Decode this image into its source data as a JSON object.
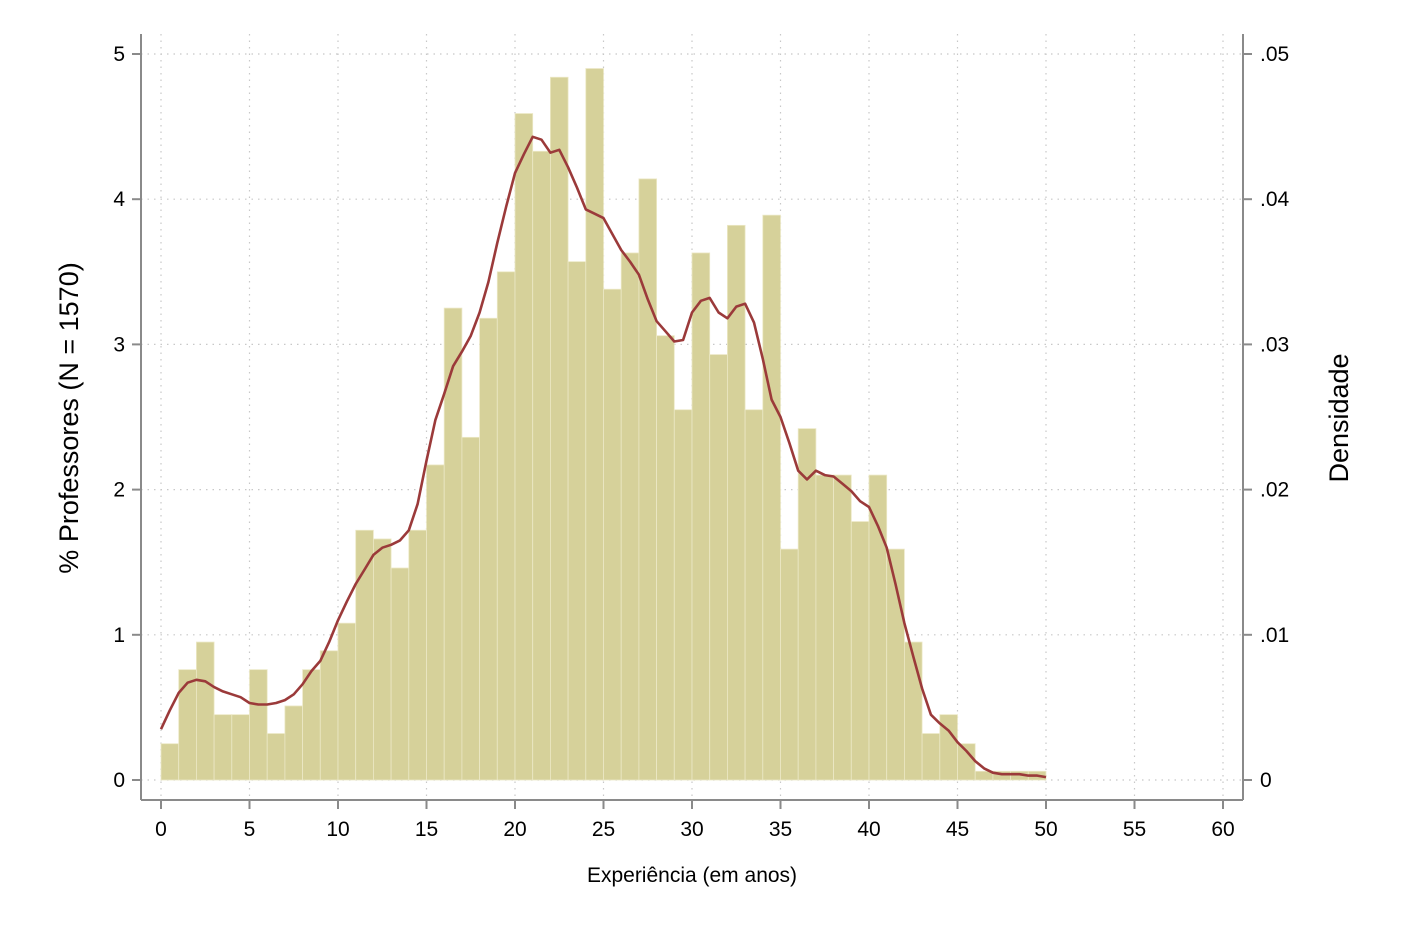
{
  "chart_data": {
    "type": "bar",
    "title": "",
    "xlabel": "Experiência (em anos)",
    "ylabel": "% Professores (N = 1570)",
    "y2label": "Densidade",
    "xlim": [
      0,
      60
    ],
    "ylim": [
      0,
      5
    ],
    "y2lim": [
      0,
      0.05
    ],
    "x_ticks": [
      "0",
      "5",
      "10",
      "15",
      "20",
      "25",
      "30",
      "35",
      "40",
      "45",
      "50",
      "55",
      "60"
    ],
    "y_ticks": [
      "0",
      "1",
      "2",
      "3",
      "4",
      "5"
    ],
    "y2_ticks": [
      "0",
      ".01",
      ".02",
      ".03",
      ".04",
      ".05"
    ],
    "grid": true,
    "colors": {
      "bars": "#d6d19a",
      "density": "#9b3a3a",
      "axis": "#8a8a8a",
      "grid": "#c8c8c8"
    },
    "series": [
      {
        "type": "histogram",
        "bin_width": 1,
        "x": [
          0,
          1,
          2,
          3,
          4,
          5,
          6,
          7,
          8,
          9,
          10,
          11,
          12,
          13,
          14,
          15,
          16,
          17,
          18,
          19,
          20,
          21,
          22,
          23,
          24,
          25,
          26,
          27,
          28,
          29,
          30,
          31,
          32,
          33,
          34,
          35,
          36,
          37,
          38,
          39,
          40,
          41,
          42,
          43,
          44,
          45,
          46,
          47,
          48,
          49
        ],
        "values": [
          0.25,
          0.76,
          0.95,
          0.45,
          0.45,
          0.76,
          0.32,
          0.51,
          0.76,
          0.89,
          1.08,
          1.72,
          1.66,
          1.46,
          1.72,
          2.17,
          3.25,
          2.36,
          3.18,
          3.5,
          4.59,
          4.33,
          4.84,
          3.57,
          4.9,
          3.38,
          3.63,
          4.14,
          3.06,
          2.55,
          3.63,
          2.93,
          3.82,
          2.55,
          3.89,
          1.59,
          2.42,
          2.1,
          2.1,
          1.78,
          2.1,
          1.59,
          0.95,
          0.32,
          0.45,
          0.25,
          0.06,
          0.06,
          0.06,
          0.06
        ]
      },
      {
        "type": "density",
        "x": [
          0,
          0.5,
          1,
          1.5,
          2,
          2.5,
          3,
          3.5,
          4,
          4.5,
          5,
          5.5,
          6,
          6.5,
          7,
          7.5,
          8,
          8.5,
          9,
          9.5,
          10,
          10.5,
          11,
          11.5,
          12,
          12.5,
          13,
          13.5,
          14,
          14.5,
          15,
          15.5,
          16,
          16.5,
          17,
          17.5,
          18,
          18.5,
          19,
          19.5,
          20,
          20.5,
          21,
          21.5,
          22,
          22.5,
          23,
          23.5,
          24,
          24.5,
          25,
          25.5,
          26,
          26.5,
          27,
          27.5,
          28,
          28.5,
          29,
          29.5,
          30,
          30.5,
          31,
          31.5,
          32,
          32.5,
          33,
          33.5,
          34,
          34.5,
          35,
          35.5,
          36,
          36.5,
          37,
          37.5,
          38,
          38.5,
          39,
          39.5,
          40,
          40.5,
          41,
          41.5,
          42,
          42.5,
          43,
          43.5,
          44,
          44.5,
          45,
          45.5,
          46,
          46.5,
          47,
          47.5,
          48,
          48.5,
          49,
          49.5,
          50
        ],
        "values": [
          0.0035,
          0.0048,
          0.006,
          0.0067,
          0.0069,
          0.0068,
          0.0064,
          0.0061,
          0.0059,
          0.0057,
          0.0053,
          0.0052,
          0.0052,
          0.0053,
          0.0055,
          0.0059,
          0.0066,
          0.0075,
          0.0082,
          0.0095,
          0.011,
          0.0123,
          0.0135,
          0.0145,
          0.0155,
          0.016,
          0.0162,
          0.0165,
          0.0172,
          0.019,
          0.022,
          0.0248,
          0.0266,
          0.0285,
          0.0295,
          0.0306,
          0.0322,
          0.0343,
          0.037,
          0.0395,
          0.0418,
          0.0431,
          0.0443,
          0.0441,
          0.0432,
          0.0434,
          0.0422,
          0.0408,
          0.0393,
          0.039,
          0.0387,
          0.0376,
          0.0365,
          0.0357,
          0.0348,
          0.0331,
          0.0316,
          0.0309,
          0.0302,
          0.0303,
          0.0322,
          0.033,
          0.0332,
          0.0322,
          0.0318,
          0.0326,
          0.0328,
          0.0315,
          0.029,
          0.0262,
          0.025,
          0.0232,
          0.0213,
          0.0207,
          0.0213,
          0.021,
          0.0209,
          0.0204,
          0.0199,
          0.0192,
          0.0188,
          0.0175,
          0.016,
          0.0135,
          0.0108,
          0.0085,
          0.0063,
          0.0045,
          0.0039,
          0.0034,
          0.0026,
          0.002,
          0.0013,
          0.0008,
          0.0005,
          0.0004,
          0.0004,
          0.0004,
          0.0003,
          0.0003,
          0.0002
        ]
      }
    ]
  }
}
